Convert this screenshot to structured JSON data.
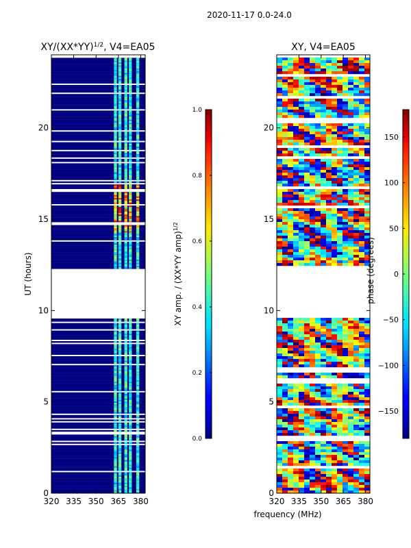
{
  "suptitle": "2020-11-17 0.0-24.0",
  "xlabel": "frequency (MHz)",
  "colors": {
    "gap": "#ffffff",
    "axis": "#000000"
  },
  "chart_data": [
    {
      "type": "heatmap",
      "name": "amplitude",
      "title_main": "XY/(XX*YY)",
      "title_sup": "1/2",
      "title_tail": ", V4=EA05",
      "ylabel": "UT (hours)",
      "xlim": [
        320,
        383
      ],
      "ylim": [
        0,
        24
      ],
      "xticks": [
        320,
        335,
        350,
        365,
        380
      ],
      "yticks": [
        0,
        5,
        10,
        15,
        20
      ],
      "data_ranges": [
        [
          0,
          9.6
        ],
        [
          12.3,
          23.8
        ]
      ],
      "bright_channels": [
        [
          362,
          364
        ],
        [
          365,
          367
        ],
        [
          369,
          371
        ],
        [
          372,
          374
        ],
        [
          377,
          379
        ]
      ],
      "flare_hours": [
        14.3,
        17.0
      ],
      "colorbar": {
        "label_main": "XY amp. / (XX*YY amp)",
        "label_sup": "1/2",
        "range": [
          0.0,
          1.0
        ],
        "ticks": [
          "0.0",
          "0.2",
          "0.4",
          "0.6",
          "0.8",
          "1.0"
        ],
        "colormap": "jet"
      }
    },
    {
      "type": "heatmap",
      "name": "phase",
      "title_main": "XY, V4=EA05",
      "xlim": [
        320,
        383
      ],
      "ylim": [
        0,
        24
      ],
      "xticks": [
        320,
        335,
        350,
        365,
        380
      ],
      "yticks": [
        0,
        5,
        10,
        15,
        20
      ],
      "data_ranges": [
        [
          0,
          9.6
        ],
        [
          12.3,
          23.8
        ]
      ],
      "colorbar": {
        "label_main": "phase (degrees)",
        "range": [
          -180,
          180
        ],
        "ticks": [
          "−150",
          "−100",
          "−50",
          "0",
          "50",
          "100",
          "150"
        ],
        "tick_values": [
          -150,
          -100,
          -50,
          0,
          50,
          100,
          150
        ],
        "colormap": "jet"
      }
    }
  ]
}
